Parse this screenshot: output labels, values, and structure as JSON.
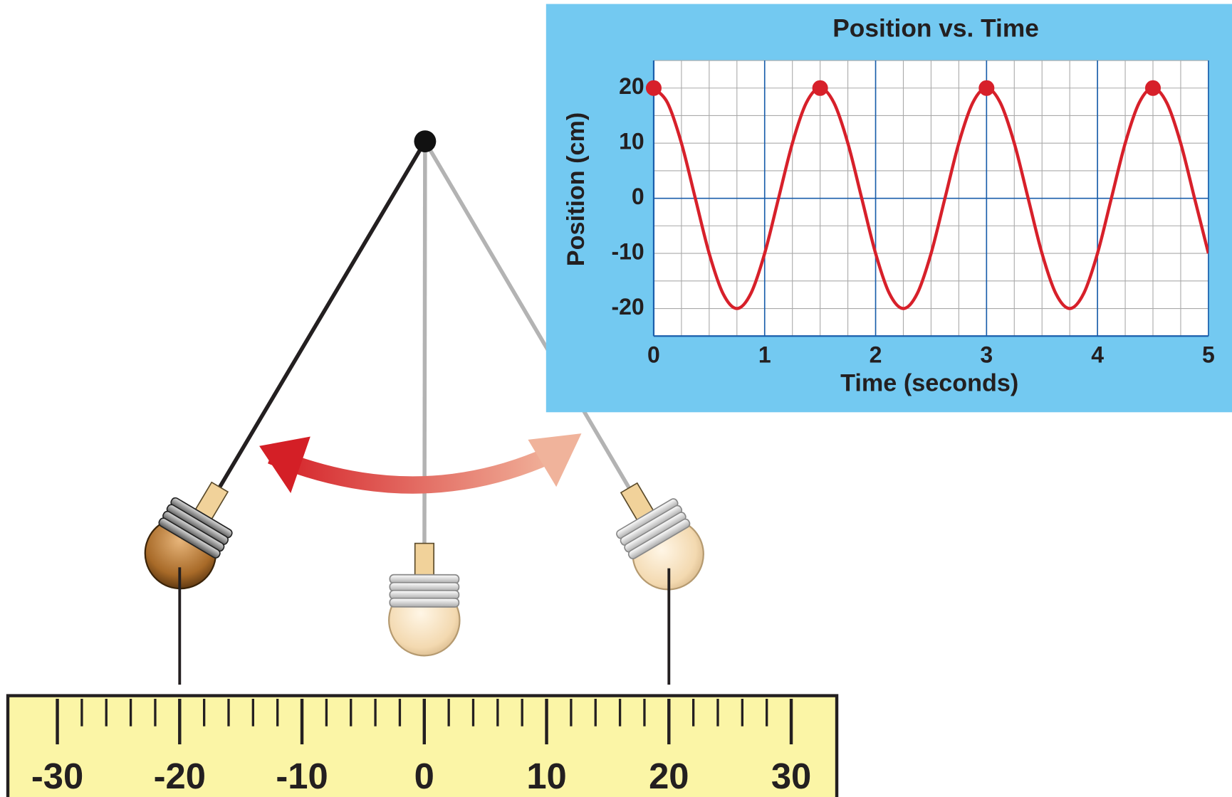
{
  "chart_data": {
    "type": "line",
    "title": "Position vs. Time",
    "x_label": "Time (seconds)",
    "y_label": "Position (cm)",
    "xlim": [
      0,
      5
    ],
    "ylim": [
      -25,
      25
    ],
    "xticks": [
      0,
      1,
      2,
      3,
      4,
      5
    ],
    "yticks": [
      -20,
      -10,
      0,
      10,
      20
    ],
    "grid": true,
    "x_minor_step": 0.25,
    "y_minor_step": 5,
    "series": [
      {
        "color": "#d7202a",
        "x": [
          0,
          0.125,
          0.25,
          0.375,
          0.5,
          0.625,
          0.75,
          0.875,
          1,
          1.125,
          1.25,
          1.375,
          1.5,
          1.625,
          1.75,
          1.875,
          2,
          2.125,
          2.25,
          2.375,
          2.5,
          2.625,
          2.75,
          2.875,
          3,
          3.125,
          3.25,
          3.375,
          3.5,
          3.625,
          3.75,
          3.875,
          4,
          4.125,
          4.25,
          4.375,
          4.5,
          4.625,
          4.75,
          4.875,
          5
        ],
        "values": [
          20,
          17.3,
          10,
          0,
          -10,
          -17.3,
          -20,
          -17.3,
          -10,
          0,
          10,
          17.3,
          20,
          17.3,
          10,
          0,
          -10,
          -17.3,
          -20,
          -17.3,
          -10,
          0,
          10,
          17.3,
          20,
          17.3,
          10,
          0,
          -10,
          -17.3,
          -20,
          -17.3,
          -10,
          0,
          10,
          17.3,
          20,
          17.3,
          10,
          0,
          -10
        ]
      }
    ],
    "peaks": {
      "color": "#d7202a",
      "x": [
        0,
        1.5,
        3,
        4.5
      ],
      "values": [
        20,
        20,
        20,
        20
      ]
    }
  },
  "diagram": {
    "ruler": {
      "range": [
        -30,
        30
      ],
      "ticks": [
        -30,
        -20,
        -10,
        0,
        10,
        20,
        30
      ],
      "minor_step": 2
    },
    "bob_positions": [
      -20,
      0,
      20
    ]
  }
}
